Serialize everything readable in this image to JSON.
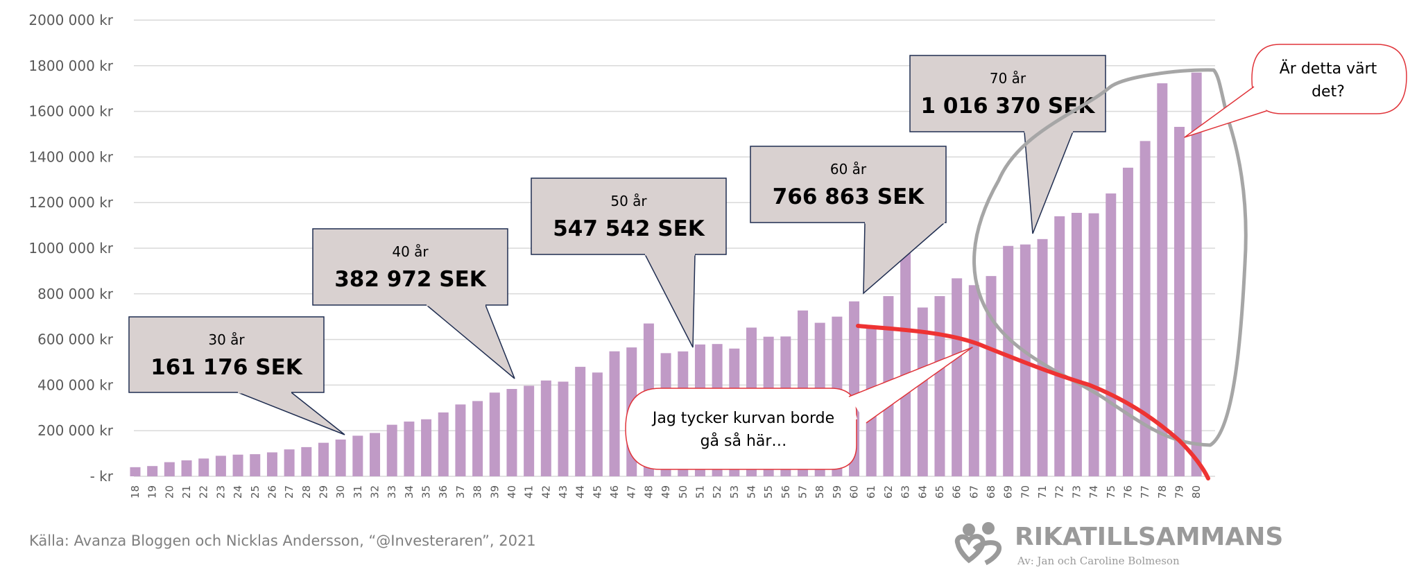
{
  "chart_data": {
    "type": "bar",
    "currency_suffix": "kr",
    "ylim": [
      0,
      2000000
    ],
    "y_ticks": [
      "-   kr",
      "200 000 kr",
      "400 000 kr",
      "600 000 kr",
      "800 000 kr",
      "1000 000 kr",
      "1200 000 kr",
      "1400 000 kr",
      "1600 000 kr",
      "1800 000 kr",
      "2000 000 kr"
    ],
    "grid": true,
    "bar_color": "#c09ac6",
    "categories": [
      "18",
      "19",
      "20",
      "21",
      "22",
      "23",
      "24",
      "25",
      "26",
      "27",
      "28",
      "29",
      "30",
      "31",
      "32",
      "33",
      "34",
      "35",
      "36",
      "37",
      "38",
      "39",
      "40",
      "41",
      "42",
      "43",
      "44",
      "45",
      "46",
      "47",
      "48",
      "49",
      "50",
      "51",
      "52",
      "53",
      "54",
      "55",
      "56",
      "57",
      "58",
      "59",
      "60",
      "61",
      "62",
      "63",
      "64",
      "65",
      "66",
      "67",
      "68",
      "69",
      "70",
      "71",
      "72",
      "73",
      "74",
      "75",
      "76",
      "77",
      "78",
      "79",
      "80"
    ],
    "values": [
      40000,
      45000,
      62000,
      70000,
      78000,
      90000,
      95000,
      97000,
      105000,
      118000,
      128000,
      147000,
      161176,
      178000,
      190000,
      226000,
      240000,
      250000,
      280000,
      315000,
      330000,
      367000,
      382972,
      397000,
      420000,
      415000,
      480000,
      455000,
      548000,
      565000,
      670000,
      540000,
      547542,
      578000,
      580000,
      560000,
      652000,
      612000,
      613000,
      727000,
      673000,
      700000,
      766863,
      650000,
      790000,
      990000,
      740000,
      790000,
      868000,
      838000,
      878000,
      1010000,
      1016370,
      1040000,
      1140000,
      1155000,
      1153000,
      1240000,
      1353000,
      1470000,
      1723000,
      1532000,
      1770000
    ]
  },
  "callouts": [
    {
      "age": "30 år",
      "value": "161 176 SEK"
    },
    {
      "age": "40 år",
      "value": "382 972 SEK"
    },
    {
      "age": "50 år",
      "value": "547 542 SEK"
    },
    {
      "age": "60 år",
      "value": "766 863 SEK"
    },
    {
      "age": "70 år",
      "value": "1 016 370 SEK"
    }
  ],
  "bubbles": {
    "curve_line1": "Jag tycker kurvan borde",
    "curve_line2": "gå så här…",
    "worth_line1": "Är detta värt",
    "worth_line2": "det?"
  },
  "source": "Källa: Avanza Bloggen och Nicklas Andersson, “@Investeraren”, 2021",
  "logo": {
    "name": "RIKATILLSAMMANS",
    "subtitle": "Av: Jan och Caroline Bolmeson"
  },
  "colors": {
    "callout_fill": "#d9d1d0",
    "callout_border": "#1f2d50",
    "red_line": "#ee3333",
    "gray_loop": "#a6a6a6",
    "bubble_border": "#e0343a"
  }
}
